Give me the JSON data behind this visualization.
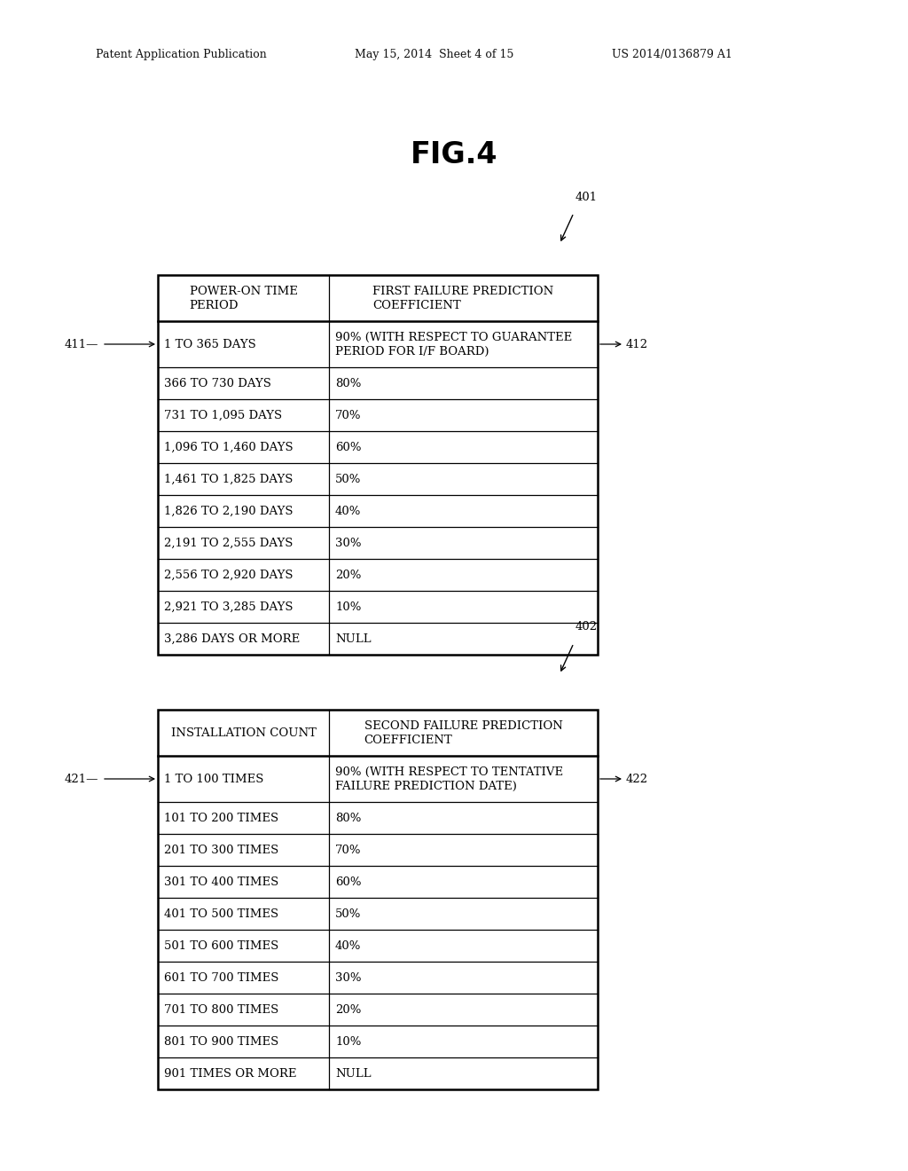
{
  "header_text_left": "Patent Application Publication",
  "header_text_mid": "May 15, 2014  Sheet 4 of 15",
  "header_text_right": "US 2014/0136879 A1",
  "fig_title": "FIG.4",
  "bg_color": "#ffffff",
  "table1": {
    "top_label": "401",
    "left_label": "411",
    "right_label": "412",
    "col1_header": "POWER-ON TIME\nPERIOD",
    "col2_header": "FIRST FAILURE PREDICTION\nCOEFFICIENT",
    "rows": [
      [
        "1 TO 365 DAYS",
        "90% (WITH RESPECT TO GUARANTEE\nPERIOD FOR I/F BOARD)"
      ],
      [
        "366 TO 730 DAYS",
        "80%"
      ],
      [
        "731 TO 1,095 DAYS",
        "70%"
      ],
      [
        "1,096 TO 1,460 DAYS",
        "60%"
      ],
      [
        "1,461 TO 1,825 DAYS",
        "50%"
      ],
      [
        "1,826 TO 2,190 DAYS",
        "40%"
      ],
      [
        "2,191 TO 2,555 DAYS",
        "30%"
      ],
      [
        "2,556 TO 2,920 DAYS",
        "20%"
      ],
      [
        "2,921 TO 3,285 DAYS",
        "10%"
      ],
      [
        "3,286 DAYS OR MORE",
        "NULL"
      ]
    ]
  },
  "table2": {
    "top_label": "402",
    "left_label": "421",
    "right_label": "422",
    "col1_header": "INSTALLATION COUNT",
    "col2_header": "SECOND FAILURE PREDICTION\nCOEFFICIENT",
    "rows": [
      [
        "1 TO 100 TIMES",
        "90% (WITH RESPECT TO TENTATIVE\nFAILURE PREDICTION DATE)"
      ],
      [
        "101 TO 200 TIMES",
        "80%"
      ],
      [
        "201 TO 300 TIMES",
        "70%"
      ],
      [
        "301 TO 400 TIMES",
        "60%"
      ],
      [
        "401 TO 500 TIMES",
        "50%"
      ],
      [
        "501 TO 600 TIMES",
        "40%"
      ],
      [
        "601 TO 700 TIMES",
        "30%"
      ],
      [
        "701 TO 800 TIMES",
        "20%"
      ],
      [
        "801 TO 900 TIMES",
        "10%"
      ],
      [
        "901 TIMES OR MORE",
        "NULL"
      ]
    ]
  }
}
